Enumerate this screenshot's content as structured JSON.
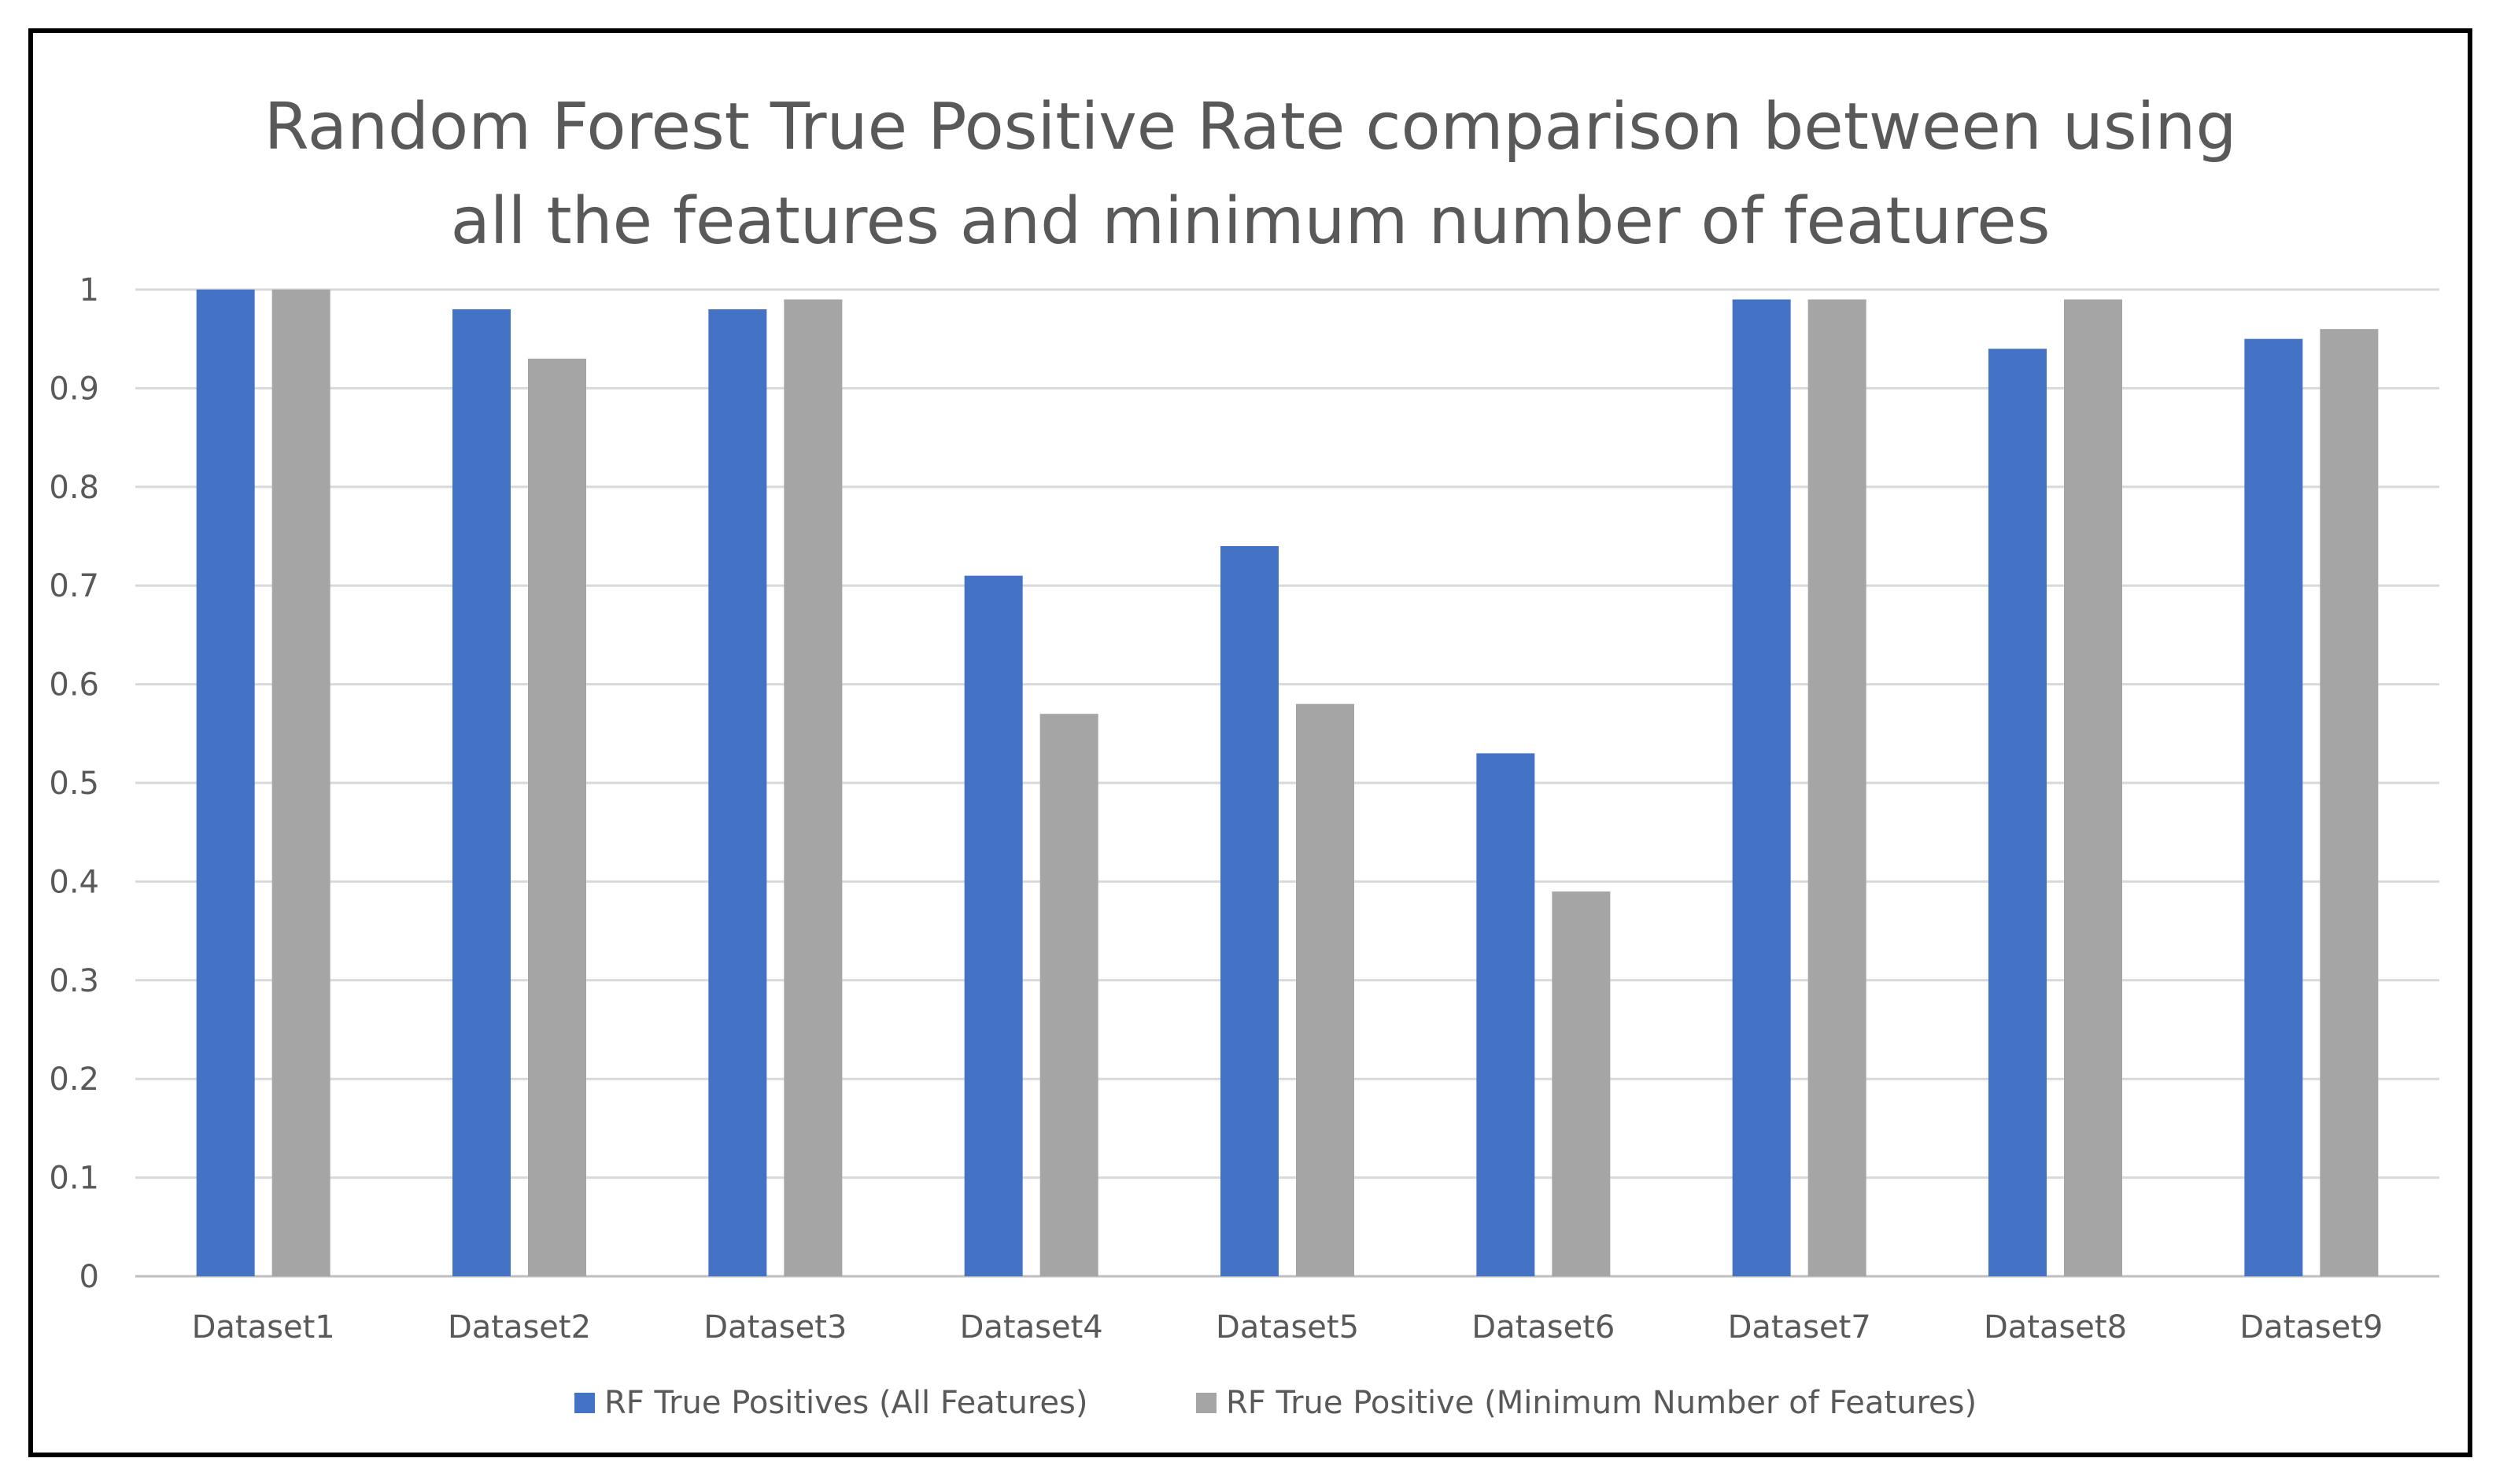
{
  "chart_data": {
    "type": "bar",
    "title_lines": [
      "Random Forest True Positive Rate comparison between using",
      "all the features and minimum number of features"
    ],
    "categories": [
      "Dataset1",
      "Dataset2",
      "Dataset3",
      "Dataset4",
      "Dataset5",
      "Dataset6",
      "Dataset7",
      "Dataset8",
      "Dataset9"
    ],
    "series": [
      {
        "name": "RF True Positives (All Features)",
        "color": "#4472C4",
        "values": [
          1.0,
          0.98,
          0.98,
          0.71,
          0.74,
          0.53,
          0.99,
          0.94,
          0.95
        ]
      },
      {
        "name": "RF True Positive (Minimum Number of Features)",
        "color": "#A5A5A5",
        "values": [
          1.0,
          0.93,
          0.99,
          0.57,
          0.58,
          0.39,
          0.99,
          0.99,
          0.96
        ]
      }
    ],
    "y_ticks": [
      "0",
      "0.1",
      "0.2",
      "0.3",
      "0.4",
      "0.5",
      "0.6",
      "0.7",
      "0.8",
      "0.9",
      "1"
    ],
    "ylim": [
      0,
      1
    ],
    "xlabel": "",
    "ylabel": "",
    "grid": true,
    "legend_position": "bottom"
  }
}
